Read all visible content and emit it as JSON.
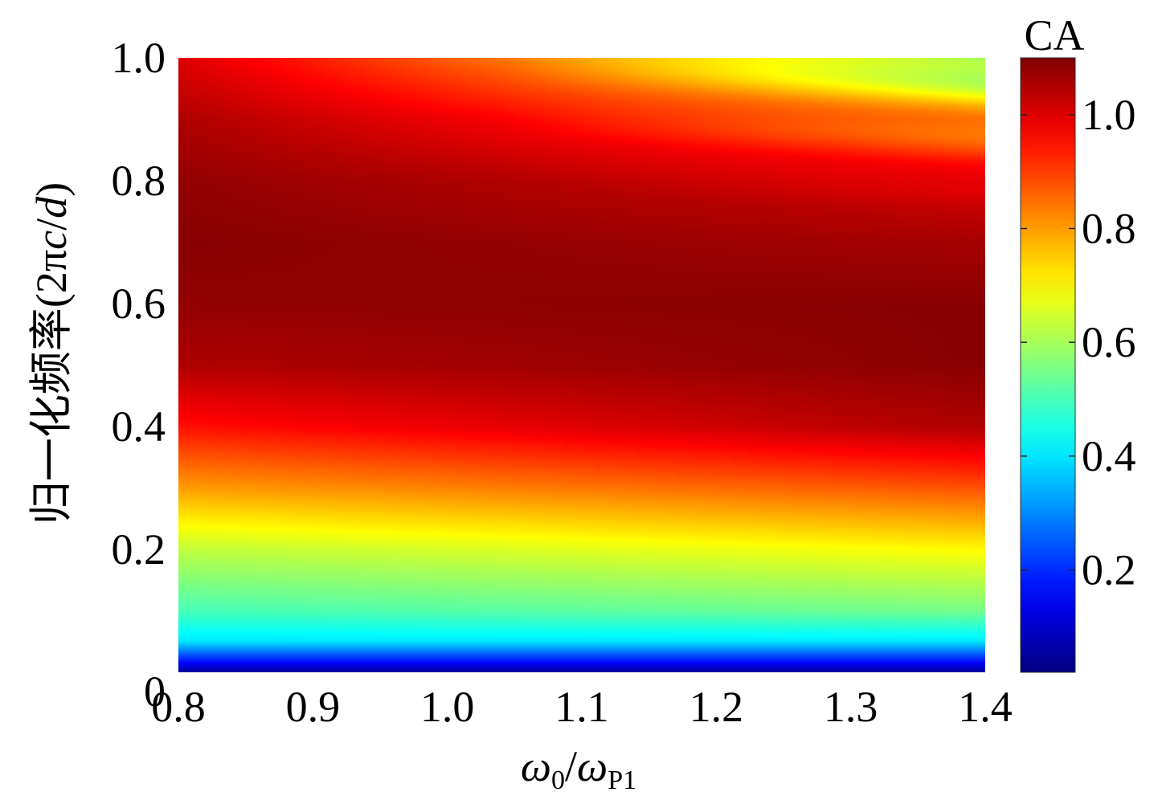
{
  "chart_data": {
    "type": "heatmap",
    "title": "",
    "xlabel": {
      "base": "ω",
      "num_sub": "0",
      "slash": "/",
      "den_base": "ω",
      "den_sub": "P1"
    },
    "ylabel": {
      "main": "归一化频率",
      "paren_open": "(2π",
      "italic_c": "c",
      "slash": "/",
      "italic_d": "d",
      "paren_close": ")"
    },
    "xlim": [
      0.8,
      1.4
    ],
    "ylim": [
      0,
      1.0
    ],
    "x_ticks": [
      {
        "value": 0.8,
        "label": "0.8"
      },
      {
        "value": 0.9,
        "label": "0.9"
      },
      {
        "value": 1.0,
        "label": "1.0"
      },
      {
        "value": 1.1,
        "label": "1.1"
      },
      {
        "value": 1.2,
        "label": "1.2"
      },
      {
        "value": 1.3,
        "label": "1.3"
      },
      {
        "value": 1.4,
        "label": "1.4"
      }
    ],
    "y_ticks": [
      {
        "value": 0,
        "label": "0"
      },
      {
        "value": 0.2,
        "label": "0.2"
      },
      {
        "value": 0.4,
        "label": "0.4"
      },
      {
        "value": 0.6,
        "label": "0.6"
      },
      {
        "value": 0.8,
        "label": "0.8"
      },
      {
        "value": 1.0,
        "label": "1.0"
      }
    ],
    "colorbar": {
      "title": "CA",
      "colormap": "jet",
      "range": [
        0.02,
        1.1
      ],
      "ticks": [
        {
          "value": 0.2,
          "label": "0.2"
        },
        {
          "value": 0.4,
          "label": "0.4"
        },
        {
          "value": 0.6,
          "label": "0.6"
        },
        {
          "value": 0.8,
          "label": "0.8"
        },
        {
          "value": 1.0,
          "label": "1.0"
        }
      ]
    },
    "z_profile_by_y": {
      "at_x_0.8": [
        {
          "y": 0.0,
          "z": 0.05
        },
        {
          "y": 0.05,
          "z": 0.4
        },
        {
          "y": 0.1,
          "z": 0.5
        },
        {
          "y": 0.2,
          "z": 0.63
        },
        {
          "y": 0.3,
          "z": 0.8
        },
        {
          "y": 0.4,
          "z": 0.95
        },
        {
          "y": 0.5,
          "z": 1.05
        },
        {
          "y": 0.6,
          "z": 1.08
        },
        {
          "y": 0.7,
          "z": 1.09
        },
        {
          "y": 0.8,
          "z": 1.08
        },
        {
          "y": 0.9,
          "z": 1.05
        },
        {
          "y": 1.0,
          "z": 1.0
        }
      ],
      "at_x_1.4": [
        {
          "y": 0.0,
          "z": 0.05
        },
        {
          "y": 0.05,
          "z": 0.4
        },
        {
          "y": 0.1,
          "z": 0.55
        },
        {
          "y": 0.2,
          "z": 0.7
        },
        {
          "y": 0.3,
          "z": 0.88
        },
        {
          "y": 0.4,
          "z": 1.05
        },
        {
          "y": 0.5,
          "z": 1.09
        },
        {
          "y": 0.6,
          "z": 1.09
        },
        {
          "y": 0.7,
          "z": 1.06
        },
        {
          "y": 0.8,
          "z": 1.0
        },
        {
          "y": 0.9,
          "z": 0.85
        },
        {
          "y": 1.0,
          "z": 0.6
        }
      ]
    },
    "grid": false,
    "legend": "colorbar-right"
  }
}
